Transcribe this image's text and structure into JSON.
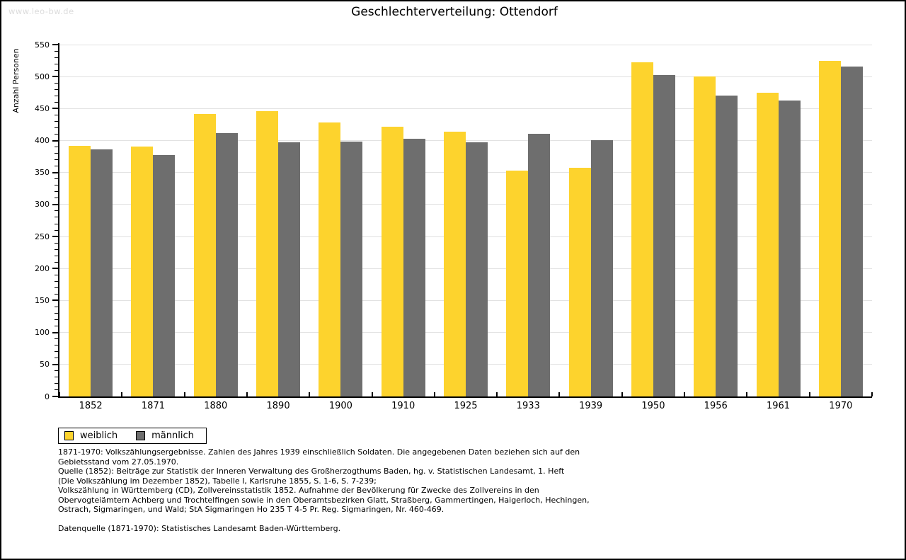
{
  "watermark": "www.leo-bw.de",
  "title": "Geschlechterverteilung: Ottendorf",
  "chart_data": {
    "type": "bar",
    "title": "Geschlechterverteilung: Ottendorf",
    "xlabel": "",
    "ylabel": "Anzahl Personen",
    "ylim": [
      0,
      550
    ],
    "ytick_step": 50,
    "yminor_step": 10,
    "grid": true,
    "legend_position": "below-left",
    "categories": [
      "1852",
      "1871",
      "1880",
      "1890",
      "1900",
      "1910",
      "1925",
      "1933",
      "1939",
      "1950",
      "1956",
      "1961",
      "1970"
    ],
    "series": [
      {
        "name": "weiblich",
        "color": "#FDD32D",
        "values": [
          392,
          391,
          442,
          446,
          428,
          422,
          414,
          353,
          357,
          522,
          500,
          475,
          525
        ]
      },
      {
        "name": "männlich",
        "color": "#6E6E6E",
        "values": [
          386,
          377,
          412,
          397,
          398,
          403,
          397,
          411,
          401,
          502,
          470,
          463,
          516
        ]
      }
    ]
  },
  "colors": {
    "background": "#FFFFFF",
    "border": "#000000",
    "axis": "#000000",
    "gridline": "#E2E2E2",
    "watermark": "#DCDCDC"
  },
  "footnotes": {
    "lines": [
      "1871-1970: Volkszählungsergebnisse. Zahlen des Jahres 1939 einschließlich Soldaten. Die angegebenen Daten beziehen sich auf den",
      "Gebietsstand vom 27.05.1970.",
      "Quelle (1852): Beiträge zur Statistik der Inneren Verwaltung des Großherzogthums Baden, hg. v. Statistischen Landesamt, 1. Heft",
      "(Die Volkszählung im Dezember 1852), Tabelle I, Karlsruhe 1855, S. 1-6, S. 7-239;",
      "Volkszählung in Württemberg (CD), Zollvereinsstatistik 1852. Aufnahme der Bevölkerung für Zwecke des Zollvereins in den",
      "Obervogteiämtern Achberg und Trochtelfingen sowie in den Oberamtsbezirken Glatt, Straßberg, Gammertingen, Haigerloch, Hechingen,",
      "Ostrach, Sigmaringen, und Wald; StA Sigmaringen Ho 235 T 4-5 Pr. Reg. Sigmaringen, Nr. 460-469.",
      "",
      "Datenquelle (1871-1970): Statistisches Landesamt Baden-Württemberg."
    ]
  }
}
